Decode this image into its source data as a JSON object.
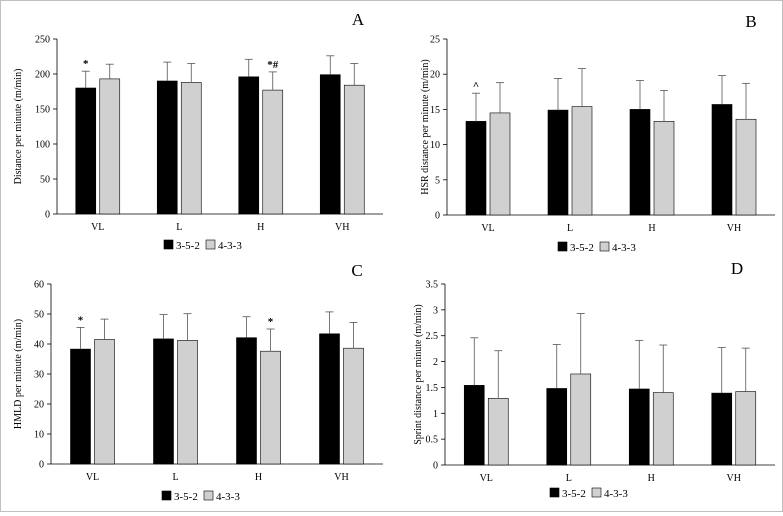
{
  "chart_data": [
    {
      "type": "bar",
      "panel": "A",
      "categories": [
        "VL",
        "L",
        "H",
        "VH"
      ],
      "series": [
        {
          "name": "3-5-2",
          "color": "#000000",
          "values": [
            180,
            190,
            196,
            199
          ],
          "errors": [
            24,
            27,
            25,
            27
          ]
        },
        {
          "name": "4-3-3",
          "color": "#d0d0d0",
          "values": [
            193,
            188,
            177,
            184
          ],
          "errors": [
            21,
            27,
            26,
            31
          ]
        }
      ],
      "annotations": [
        {
          "category": "VL",
          "series": 0,
          "text": "*"
        },
        {
          "category": "H",
          "series": 1,
          "text": "*#"
        }
      ],
      "xlabel": "",
      "ylabel": "Distance per minute (m/min)",
      "ylim": [
        0,
        250
      ],
      "yticks": [
        "0",
        "50",
        "100",
        "150",
        "200",
        "250"
      ],
      "grid": false,
      "legend_position": "bottom"
    },
    {
      "type": "bar",
      "panel": "B",
      "categories": [
        "VL",
        "L",
        "H",
        "VH"
      ],
      "series": [
        {
          "name": "3-5-2",
          "color": "#000000",
          "values": [
            13.3,
            14.9,
            15.0,
            15.7
          ],
          "errors": [
            4.0,
            4.5,
            4.1,
            4.1
          ]
        },
        {
          "name": "4-3-3",
          "color": "#d0d0d0",
          "values": [
            14.5,
            15.4,
            13.3,
            13.6
          ],
          "errors": [
            4.3,
            5.4,
            4.4,
            5.1
          ]
        }
      ],
      "annotations": [
        {
          "category": "VL",
          "series": 0,
          "text": "^"
        }
      ],
      "xlabel": "",
      "ylabel": "HSR distance per minute (m/min)",
      "ylim": [
        0,
        25
      ],
      "yticks": [
        "0",
        "5",
        "10",
        "15",
        "20",
        "25"
      ],
      "grid": false,
      "legend_position": "bottom"
    },
    {
      "type": "bar",
      "panel": "C",
      "categories": [
        "VL",
        "L",
        "H",
        "VH"
      ],
      "series": [
        {
          "name": "3-5-2",
          "color": "#000000",
          "values": [
            38.3,
            41.7,
            42.1,
            43.4
          ],
          "errors": [
            7.2,
            8.1,
            7.0,
            7.3
          ]
        },
        {
          "name": "4-3-3",
          "color": "#d0d0d0",
          "values": [
            41.5,
            41.2,
            37.6,
            38.6
          ],
          "errors": [
            6.8,
            8.9,
            7.4,
            8.6
          ]
        }
      ],
      "annotations": [
        {
          "category": "VL",
          "series": 0,
          "text": "*"
        },
        {
          "category": "H",
          "series": 1,
          "text": "*"
        }
      ],
      "xlabel": "",
      "ylabel": "HMLD per minute (m/min)",
      "ylim": [
        0,
        60
      ],
      "yticks": [
        "0",
        "10",
        "20",
        "30",
        "40",
        "50",
        "60"
      ],
      "grid": false,
      "legend_position": "bottom"
    },
    {
      "type": "bar",
      "panel": "D",
      "categories": [
        "VL",
        "L",
        "H",
        "VH"
      ],
      "series": [
        {
          "name": "3-5-2",
          "color": "#000000",
          "values": [
            1.54,
            1.48,
            1.47,
            1.39
          ],
          "errors": [
            0.92,
            0.85,
            0.94,
            0.88
          ]
        },
        {
          "name": "4-3-3",
          "color": "#d0d0d0",
          "values": [
            1.29,
            1.76,
            1.4,
            1.42
          ],
          "errors": [
            0.92,
            1.17,
            0.92,
            0.84
          ]
        }
      ],
      "annotations": [],
      "xlabel": "",
      "ylabel": "Sprint distance per minute (m/min)",
      "ylim": [
        0,
        3.5
      ],
      "yticks": [
        "0",
        "0.5",
        "1",
        "1.5",
        "2",
        "2.5",
        "3",
        "3.5"
      ],
      "grid": false,
      "legend_position": "bottom"
    }
  ]
}
